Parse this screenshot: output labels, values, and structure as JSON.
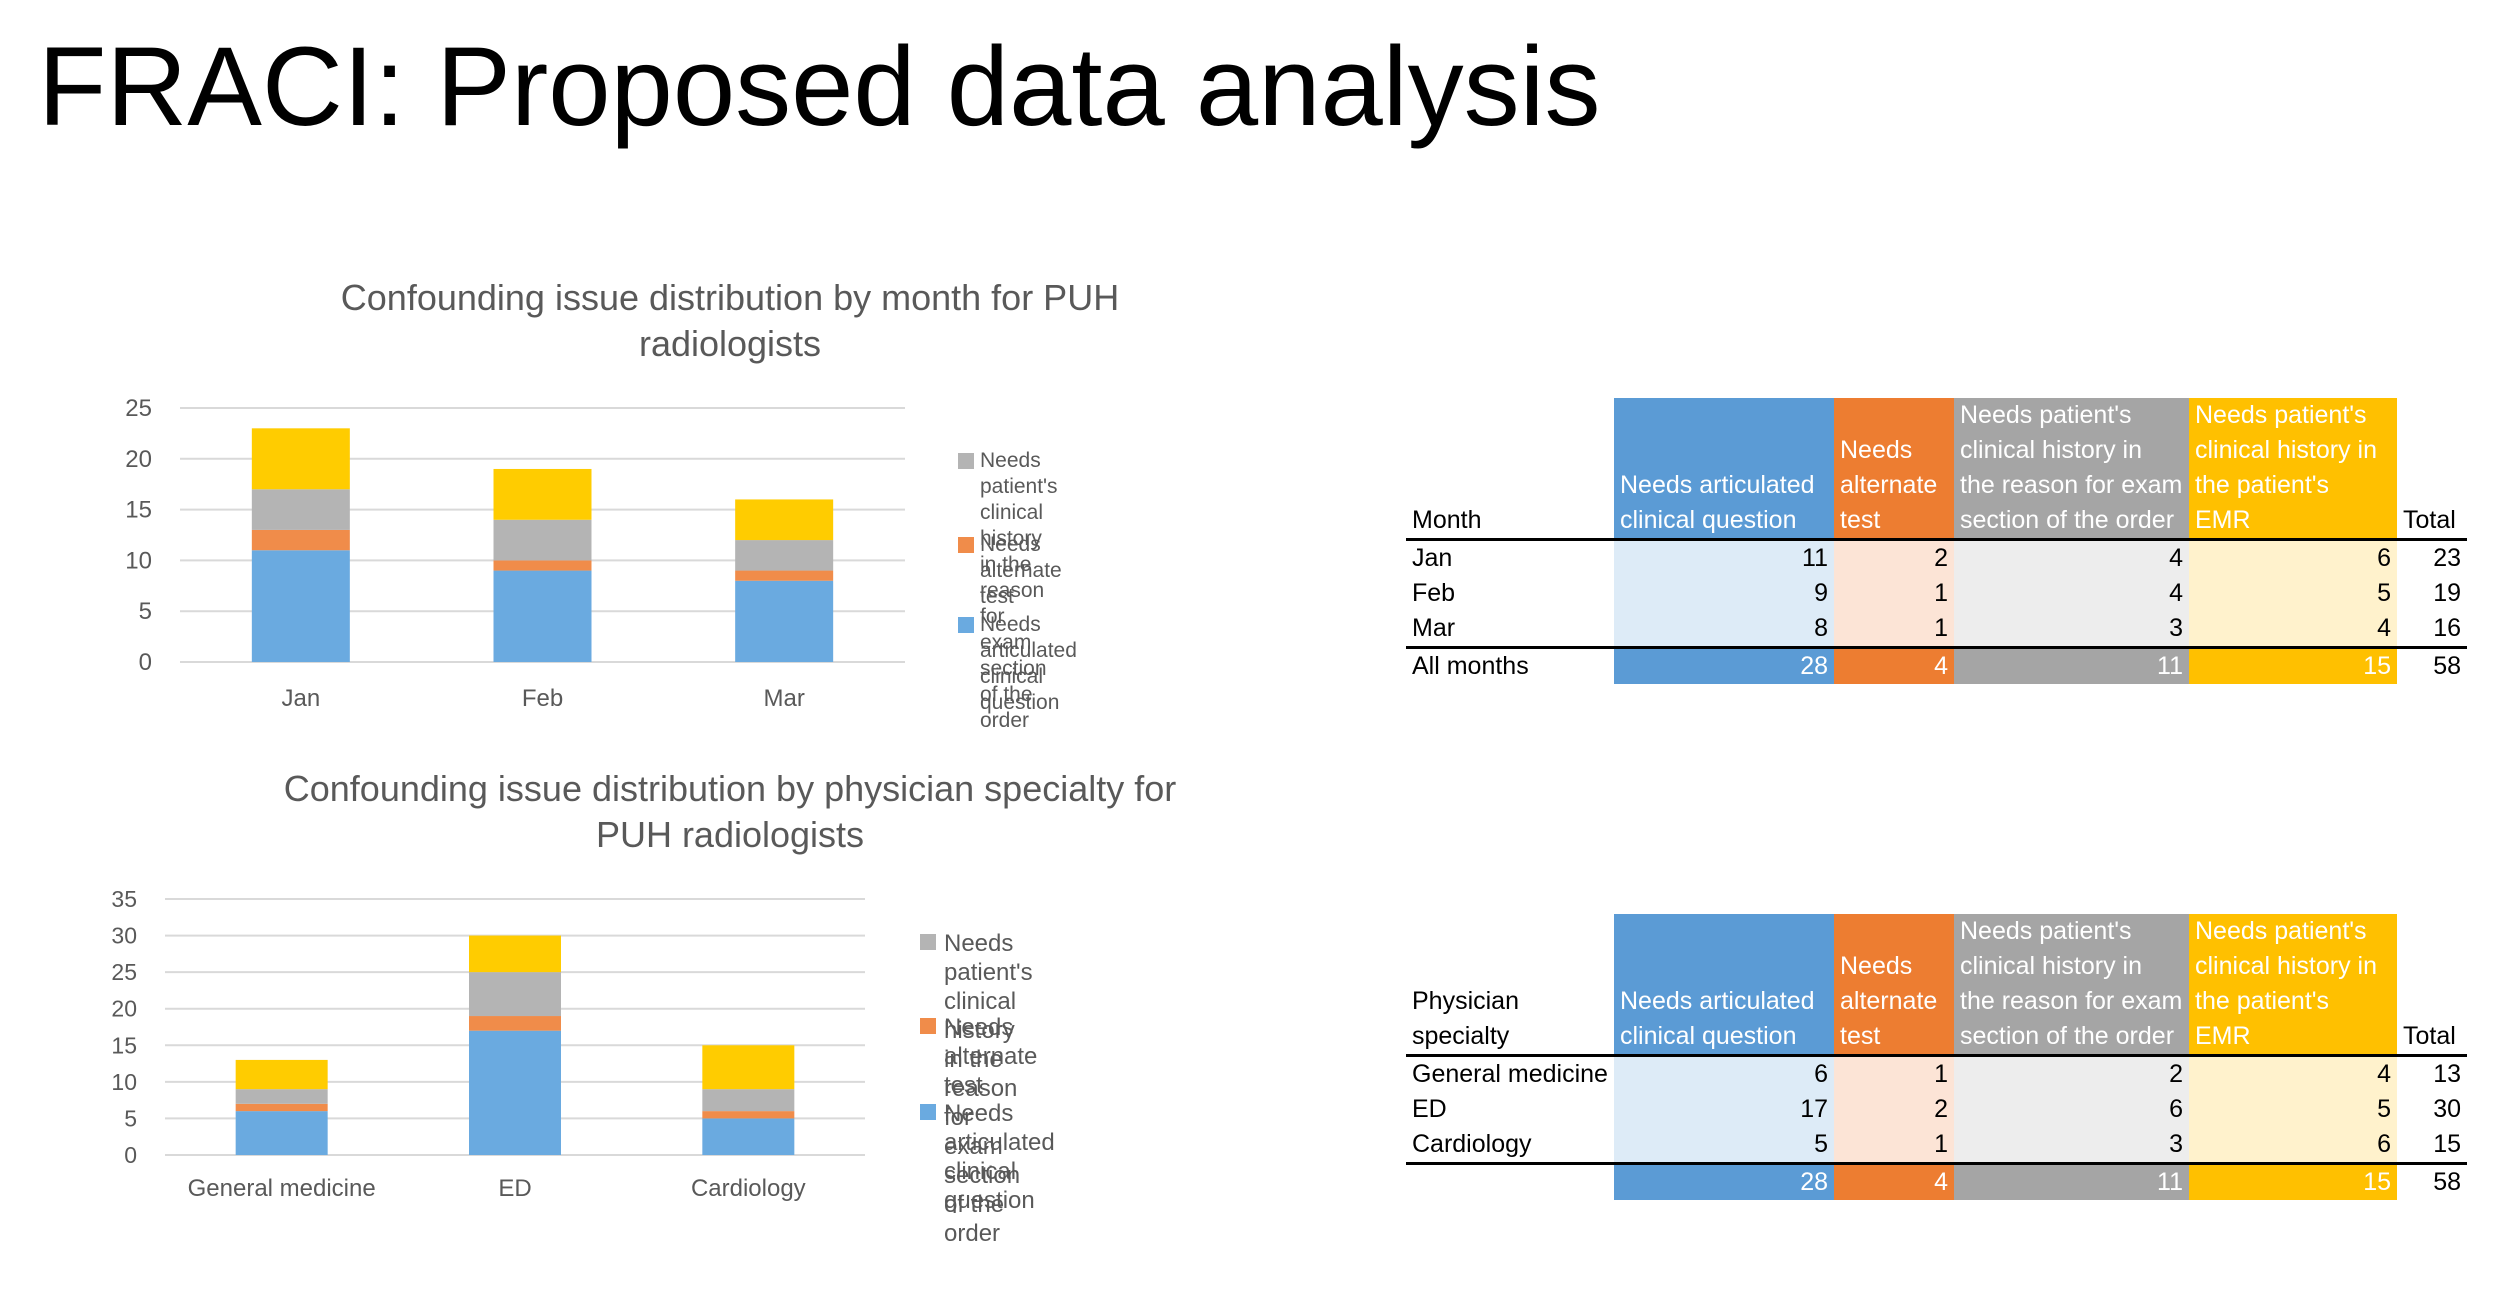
{
  "slide": {
    "title": "FRACI: Proposed data analysis"
  },
  "colors": {
    "articulated": "#5b9bd5",
    "alternate": "#ed7d31",
    "history_order": "#a5a5a5",
    "history_emr": "#ffc000",
    "articulated_bar": "#6aaae0",
    "alternate_bar": "#f08c4a",
    "history_order_bar": "#b4b4b4",
    "history_emr_bar": "#ffcc00"
  },
  "chart_data": [
    {
      "type": "bar",
      "stacked": true,
      "title_lines": [
        "Confounding issue distribution by month for PUH",
        "radiologists"
      ],
      "categories": [
        "Jan",
        "Feb",
        "Mar"
      ],
      "ylim": [
        0,
        25
      ],
      "yticks": [
        "0",
        "5",
        "10",
        "15",
        "20",
        "25"
      ],
      "ytick_values": [
        0,
        5,
        10,
        15,
        20,
        25
      ],
      "grid": true,
      "legend_position": "right",
      "series": [
        {
          "name": "Needs articulated clinical question",
          "values": [
            11,
            9,
            8
          ],
          "color_key": "articulated_bar"
        },
        {
          "name": "Needs alternate test",
          "values": [
            2,
            1,
            1
          ],
          "color_key": "alternate_bar"
        },
        {
          "name": "Needs patient's clinical history in the reason for exam section of the order",
          "values": [
            4,
            4,
            3
          ],
          "color_key": "history_order_bar"
        },
        {
          "name": "Needs patient's clinical history in the patient's EMR",
          "values": [
            6,
            5,
            4
          ],
          "color_key": "history_emr_bar"
        }
      ],
      "legend": [
        {
          "text": "Needs patient's clinical history in the\nreason for exam section of the order",
          "color_key": "history_order_bar"
        },
        {
          "text": "Needs alternate test",
          "color_key": "alternate_bar"
        },
        {
          "text": "Needs articulated clinical question",
          "color_key": "articulated_bar"
        }
      ]
    },
    {
      "type": "bar",
      "stacked": true,
      "title_lines": [
        "Confounding issue distribution by physician specialty for",
        "PUH radiologists"
      ],
      "categories": [
        "General medicine",
        "ED",
        "Cardiology"
      ],
      "ylim": [
        0,
        35
      ],
      "yticks": [
        "0",
        "5",
        "10",
        "15",
        "20",
        "25",
        "30",
        "35"
      ],
      "ytick_values": [
        0,
        5,
        10,
        15,
        20,
        25,
        30,
        35
      ],
      "grid": true,
      "legend_position": "right",
      "series": [
        {
          "name": "Needs articulated clinical question",
          "values": [
            6,
            17,
            5
          ],
          "color_key": "articulated_bar"
        },
        {
          "name": "Needs alternate test",
          "values": [
            1,
            2,
            1
          ],
          "color_key": "alternate_bar"
        },
        {
          "name": "Needs patient's clinical history in the reason for exam section of the order",
          "values": [
            2,
            6,
            3
          ],
          "color_key": "history_order_bar"
        },
        {
          "name": "Needs patient's clinical history in the patient's EMR",
          "values": [
            4,
            5,
            6
          ],
          "color_key": "history_emr_bar"
        }
      ],
      "legend": [
        {
          "text": "Needs patient's clinical history in the\nreason for exam section of the order",
          "color_key": "history_order_bar"
        },
        {
          "text": "Needs alternate test",
          "color_key": "alternate_bar"
        },
        {
          "text": "Needs articulated clinical question",
          "color_key": "articulated_bar"
        }
      ]
    }
  ],
  "tables": {
    "month": {
      "headers": {
        "first": "Month",
        "c1": "Needs articulated clinical question",
        "c2": "Needs alternate test",
        "c3": "Needs patient's clinical history in the reason for exam section of the order",
        "c4": "Needs patient's clinical history in the patient's EMR",
        "total": "Total"
      },
      "rows": [
        {
          "name": "Jan",
          "v1": "11",
          "v2": "2",
          "v3": "4",
          "v4": "6",
          "total": "23"
        },
        {
          "name": "Feb",
          "v1": "9",
          "v2": "1",
          "v3": "4",
          "v4": "5",
          "total": "19"
        },
        {
          "name": "Mar",
          "v1": "8",
          "v2": "1",
          "v3": "3",
          "v4": "4",
          "total": "16"
        }
      ],
      "totals": {
        "name": "All months",
        "v1": "28",
        "v2": "4",
        "v3": "11",
        "v4": "15",
        "total": "58"
      }
    },
    "specialty": {
      "headers": {
        "first": "Physician specialty",
        "c1": "Needs articulated clinical question",
        "c2": "Needs alternate test",
        "c3": "Needs patient's clinical history in the reason for exam section of the order",
        "c4": "Needs patient's clinical history in the patient's EMR",
        "total": "Total"
      },
      "rows": [
        {
          "name": "General medicine",
          "v1": "6",
          "v2": "1",
          "v3": "2",
          "v4": "4",
          "total": "13"
        },
        {
          "name": "ED",
          "v1": "17",
          "v2": "2",
          "v3": "6",
          "v4": "5",
          "total": "30"
        },
        {
          "name": "Cardiology",
          "v1": "5",
          "v2": "1",
          "v3": "3",
          "v4": "6",
          "total": "15"
        }
      ],
      "totals": {
        "name": "",
        "v1": "28",
        "v2": "4",
        "v3": "11",
        "v4": "15",
        "total": "58"
      }
    }
  }
}
